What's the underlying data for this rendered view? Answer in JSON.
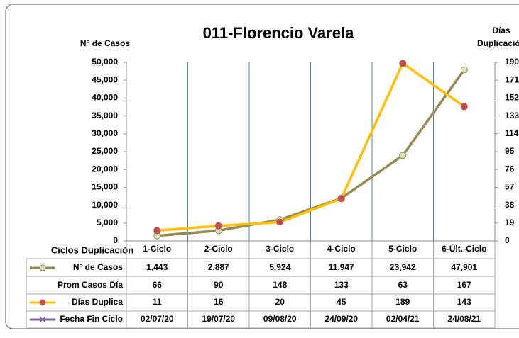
{
  "chart_data": {
    "type": "line",
    "title": "011-Florencio Varela",
    "y_label": "N° de Casos",
    "y2_label": [
      "Días",
      "Duplicación"
    ],
    "x_label": "Ciclos Duplicación",
    "categories": [
      "1-Ciclo",
      "2-Ciclo",
      "3-Ciclo",
      "4-Ciclo",
      "5-Ciclo",
      "6-Últ.-Ciclo"
    ],
    "ylim": [
      0,
      50000
    ],
    "yticks": [
      0,
      {
        "value": 5000,
        "label": "5,000"
      },
      {
        "value": 10000,
        "label": "10,000"
      },
      {
        "value": 15000,
        "label": "15,000"
      },
      {
        "value": 20000,
        "label": "20,000"
      },
      {
        "value": 25000,
        "label": "25,000"
      },
      {
        "value": 30000,
        "label": "30,000"
      },
      {
        "value": 35000,
        "label": "35,000"
      },
      {
        "value": 40000,
        "label": "40,000"
      },
      {
        "value": 45000,
        "label": "45,000"
      },
      {
        "value": 50000,
        "label": "50,000"
      }
    ],
    "y2lim": [
      0,
      190
    ],
    "y2ticks": [
      0,
      19,
      38,
      57,
      76,
      95,
      114,
      133,
      152,
      171,
      190
    ],
    "grid": "vertical",
    "series": [
      {
        "name": "N° de Casos",
        "color": "#948a54",
        "marker_color": "#d7e4bd",
        "values": [
          1443,
          2887,
          5924,
          11947,
          23942,
          47901
        ],
        "value_labels": [
          "1,443",
          "2,887",
          "5,924",
          "11,947",
          "23,942",
          "47,901"
        ]
      },
      {
        "name": "Días Duplica",
        "color": "#ffc000",
        "marker_color": "#c0504d",
        "axis": "y2",
        "values": [
          11,
          16,
          20,
          45,
          189,
          143
        ]
      }
    ],
    "table_rows": [
      {
        "name": "Prom Casos Día",
        "values": [
          66,
          90,
          148,
          133,
          63,
          167
        ]
      },
      {
        "name": "Fecha Fin Ciclo",
        "color": "#8064a2",
        "values": [
          "02/07/20",
          "19/07/20",
          "09/08/20",
          "24/09/20",
          "02/04/21",
          "24/08/21"
        ]
      }
    ]
  }
}
